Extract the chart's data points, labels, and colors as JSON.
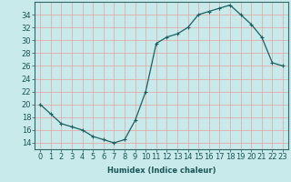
{
  "title": "",
  "xlabel": "Humidex (Indice chaleur)",
  "x": [
    0,
    1,
    2,
    3,
    4,
    5,
    6,
    7,
    8,
    9,
    10,
    11,
    12,
    13,
    14,
    15,
    16,
    17,
    18,
    19,
    20,
    21,
    22,
    23
  ],
  "y": [
    20,
    18.5,
    17,
    16.5,
    16,
    15,
    14.5,
    14,
    14.5,
    17.5,
    22,
    29.5,
    30.5,
    31,
    32,
    34,
    34.5,
    35,
    35.5,
    34,
    32.5,
    30.5,
    26.5,
    26
  ],
  "ylim": [
    13,
    36
  ],
  "yticks": [
    14,
    16,
    18,
    20,
    22,
    24,
    26,
    28,
    30,
    32,
    34
  ],
  "bg_color": "#c8eaea",
  "grid_major_color": "#e8a0a0",
  "grid_minor_color": "#e8a0a0",
  "line_color": "#1a6060",
  "marker": "+",
  "marker_size": 3,
  "marker_edge_width": 0.8,
  "line_width": 0.9,
  "label_fontsize": 6,
  "tick_fontsize": 6
}
